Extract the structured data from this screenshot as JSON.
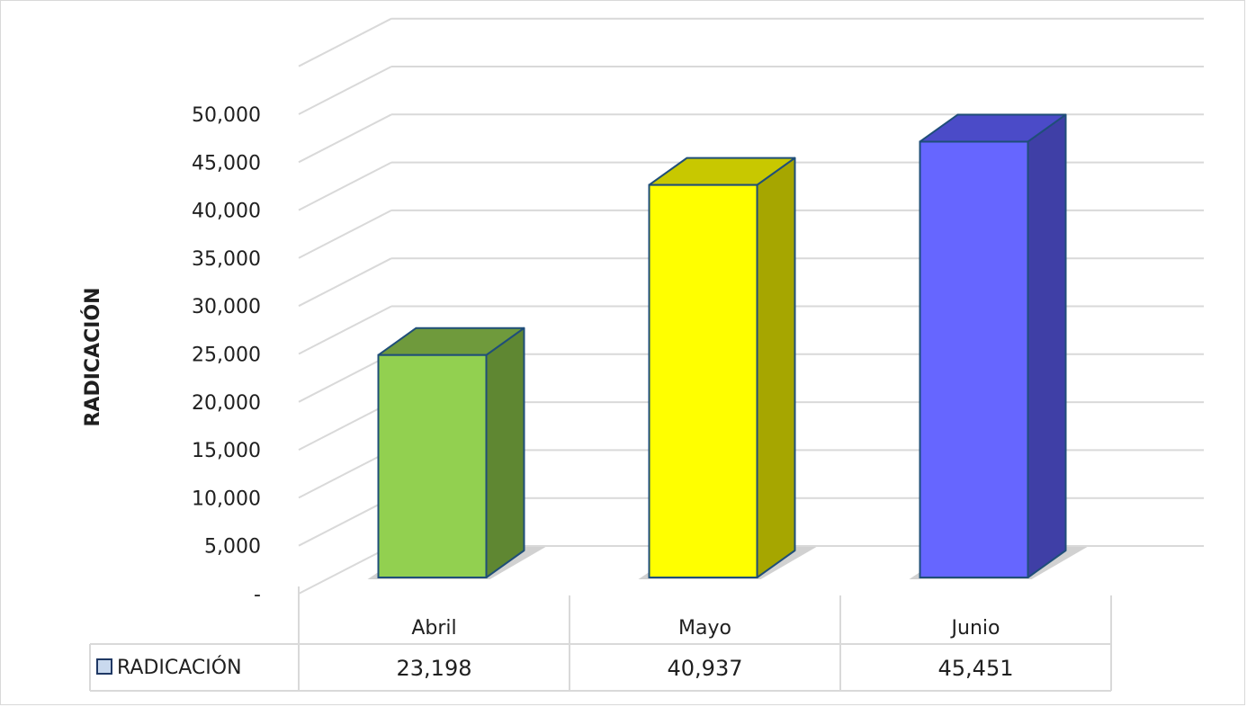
{
  "chart_data": {
    "type": "bar",
    "title": "",
    "xlabel": "",
    "ylabel": "RADICACIÓN",
    "categories": [
      "Abril",
      "Mayo",
      "Junio"
    ],
    "series": [
      {
        "name": "RADICACIÓN",
        "values": [
          23198,
          40937,
          45451
        ],
        "value_labels": [
          "23,198",
          "40,937",
          "45,451"
        ]
      }
    ],
    "ylim": [
      0,
      55000
    ],
    "y_ticks": [
      {
        "value": 0,
        "label": "-"
      },
      {
        "value": 5000,
        "label": "5,000"
      },
      {
        "value": 10000,
        "label": "10,000"
      },
      {
        "value": 15000,
        "label": "15,000"
      },
      {
        "value": 20000,
        "label": "20,000"
      },
      {
        "value": 25000,
        "label": "25,000"
      },
      {
        "value": 30000,
        "label": "30,000"
      },
      {
        "value": 35000,
        "label": "35,000"
      },
      {
        "value": 40000,
        "label": "40,000"
      },
      {
        "value": 45000,
        "label": "45,000"
      },
      {
        "value": 50000,
        "label": "50,000"
      }
    ],
    "grid": true,
    "style": "3d-column",
    "data_table": true,
    "bar_colors": [
      {
        "front": "#92d050",
        "side": "#5f8732",
        "top": "#6f9a3c"
      },
      {
        "front": "#ffff00",
        "side": "#a6a600",
        "top": "#c8c800"
      },
      {
        "front": "#6666ff",
        "side": "#3f3fa6",
        "top": "#4b4bc8"
      }
    ],
    "outline_color": "#1f4e79",
    "legend_key_color": "#c9d9ee"
  }
}
